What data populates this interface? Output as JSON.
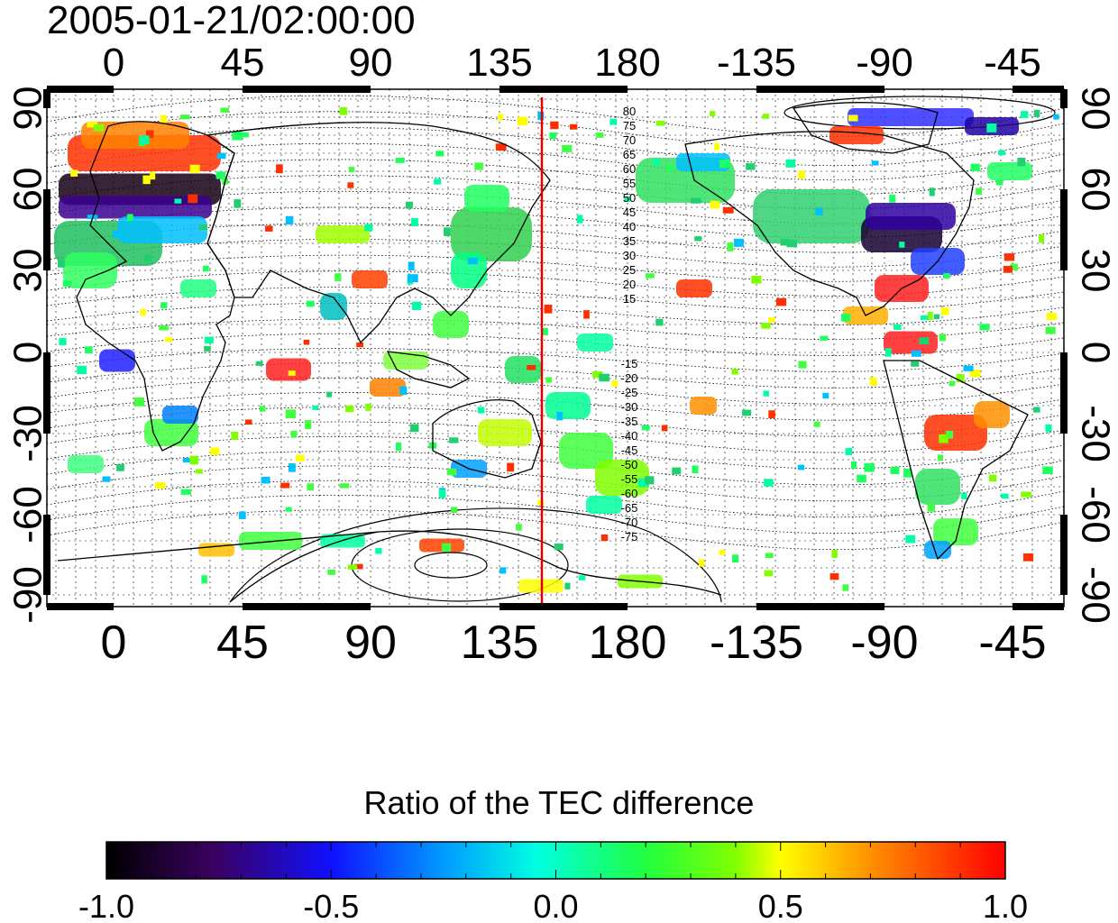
{
  "header": {
    "datetime": "2005-01-21/02:00:00"
  },
  "map": {
    "x_ticks": [
      "0",
      "45",
      "90",
      "135",
      "180",
      "-135",
      "-90",
      "-45"
    ],
    "y_ticks": [
      "90",
      "60",
      "30",
      "0",
      "-30",
      "-60",
      "-90"
    ],
    "y_ticks_right": [
      "90",
      "60",
      "30",
      "0",
      "-30",
      "-60",
      "-90"
    ],
    "contour_labels_north": [
      "80",
      "75",
      "70",
      "65",
      "60",
      "55",
      "50",
      "45",
      "40",
      "35",
      "30",
      "25",
      "20",
      "15"
    ],
    "contour_labels_south": [
      "-15",
      "-20",
      "-25",
      "-30",
      "-35",
      "-40",
      "-45",
      "-50",
      "-55",
      "-60",
      "-65",
      "-70",
      "-75"
    ],
    "marker_longitude": 150,
    "marker_color": "#e00000"
  },
  "colorbar": {
    "title": "Ratio of the TEC difference",
    "tick_labels": [
      "-1.0",
      "-0.5",
      "0.0",
      "0.5",
      "1.0"
    ],
    "range": [
      -1.0,
      1.0
    ]
  }
}
